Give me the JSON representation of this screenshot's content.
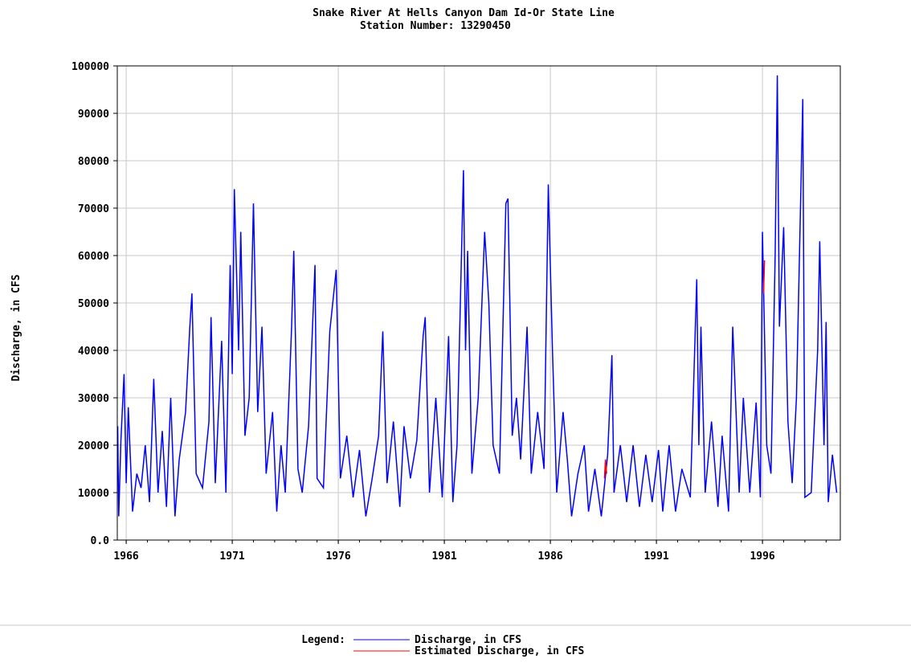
{
  "chart_data": {
    "type": "line",
    "title": "Snake River At Hells Canyon Dam Id-Or State Line",
    "subtitle": "Station Number: 13290450",
    "y_label": "Discharge, in CFS",
    "legend_title": "Legend:",
    "grid": true,
    "xlim": [
      1965.58,
      1999.67
    ],
    "xticks": [
      1966,
      1971,
      1976,
      1981,
      1986,
      1991,
      1996
    ],
    "ylim": [
      0,
      100000
    ],
    "yticks": [
      {
        "value": 0,
        "label": "0.0"
      },
      10000,
      20000,
      30000,
      40000,
      50000,
      60000,
      70000,
      80000,
      90000,
      100000
    ],
    "x": [
      1965.6,
      1965.65,
      1965.75,
      1965.9,
      1966.0,
      1966.1,
      1966.3,
      1966.5,
      1966.7,
      1966.9,
      1967.1,
      1967.3,
      1967.5,
      1967.7,
      1967.9,
      1968.1,
      1968.3,
      1968.5,
      1968.8,
      1969.0,
      1969.1,
      1969.3,
      1969.6,
      1969.9,
      1970.0,
      1970.2,
      1970.5,
      1970.7,
      1970.9,
      1971.0,
      1971.1,
      1971.3,
      1971.4,
      1971.6,
      1971.8,
      1972.0,
      1972.2,
      1972.4,
      1972.6,
      1972.9,
      1973.1,
      1973.3,
      1973.5,
      1973.8,
      1973.9,
      1974.1,
      1974.3,
      1974.6,
      1974.9,
      1975.0,
      1975.3,
      1975.6,
      1975.9,
      1976.1,
      1976.4,
      1976.7,
      1977.0,
      1977.3,
      1977.6,
      1977.9,
      1978.1,
      1978.3,
      1978.6,
      1978.9,
      1979.1,
      1979.4,
      1979.7,
      1980.0,
      1980.1,
      1980.3,
      1980.6,
      1980.9,
      1981.2,
      1981.4,
      1981.6,
      1981.9,
      1982.0,
      1982.1,
      1982.3,
      1982.6,
      1982.9,
      1983.1,
      1983.3,
      1983.6,
      1983.9,
      1984.0,
      1984.2,
      1984.4,
      1984.6,
      1984.9,
      1985.1,
      1985.4,
      1985.7,
      1985.9,
      1986.1,
      1986.3,
      1986.6,
      1986.8,
      1987.0,
      1987.3,
      1987.6,
      1987.8,
      1988.1,
      1988.4,
      1988.7,
      1988.9,
      1989.0,
      1989.3,
      1989.6,
      1989.9,
      1990.2,
      1990.5,
      1990.8,
      1991.1,
      1991.3,
      1991.6,
      1991.9,
      1992.2,
      1992.6,
      1992.9,
      1993.0,
      1993.1,
      1993.3,
      1993.6,
      1993.9,
      1994.1,
      1994.4,
      1994.6,
      1994.9,
      1995.1,
      1995.4,
      1995.7,
      1995.9,
      1996.0,
      1996.2,
      1996.4,
      1996.6,
      1996.7,
      1996.8,
      1997.0,
      1997.2,
      1997.4,
      1997.6,
      1997.9,
      1998.0,
      1998.3,
      1998.6,
      1998.7,
      1998.9,
      1999.0,
      1999.1,
      1999.3,
      1999.5
    ],
    "series": [
      {
        "name": "Discharge, in CFS",
        "color": "#0000ff",
        "values": [
          24000,
          5000,
          21000,
          35000,
          12000,
          28000,
          6000,
          14000,
          11000,
          20000,
          8000,
          34000,
          10000,
          23000,
          7000,
          30000,
          5000,
          17000,
          27000,
          45000,
          52000,
          14000,
          11000,
          25000,
          47000,
          12000,
          42000,
          10000,
          58000,
          35000,
          74000,
          40000,
          65000,
          22000,
          30000,
          71000,
          27000,
          45000,
          14000,
          27000,
          6000,
          20000,
          10000,
          45000,
          61000,
          15000,
          10000,
          24000,
          58000,
          13000,
          11000,
          44000,
          57000,
          13000,
          22000,
          9000,
          19000,
          5000,
          13000,
          22000,
          44000,
          12000,
          25000,
          7000,
          24000,
          13000,
          21000,
          43000,
          47000,
          10000,
          30000,
          9000,
          43000,
          8000,
          20000,
          78000,
          40000,
          61000,
          14000,
          30000,
          65000,
          50000,
          20000,
          14000,
          71000,
          72000,
          22000,
          30000,
          17000,
          45000,
          14000,
          27000,
          15000,
          75000,
          40000,
          10000,
          27000,
          17000,
          5000,
          14000,
          20000,
          6000,
          15000,
          5000,
          18000,
          39000,
          10000,
          20000,
          8000,
          20000,
          7000,
          18000,
          8000,
          19000,
          6000,
          20000,
          6000,
          15000,
          9000,
          55000,
          20000,
          45000,
          10000,
          25000,
          7000,
          22000,
          6000,
          45000,
          10000,
          30000,
          10000,
          29000,
          9000,
          65000,
          20000,
          14000,
          60000,
          98000,
          45000,
          66000,
          25000,
          12000,
          30000,
          93000,
          9000,
          10000,
          40000,
          63000,
          20000,
          46000,
          8000,
          18000,
          10000
        ]
      },
      {
        "name": "Estimated Discharge, in CFS",
        "color": "#ff0000",
        "x": [
          1988.55,
          1988.6,
          1988.65,
          null,
          1996.05,
          1996.1
        ],
        "values": [
          13000,
          17000,
          14000,
          null,
          52000,
          59000
        ]
      }
    ]
  }
}
